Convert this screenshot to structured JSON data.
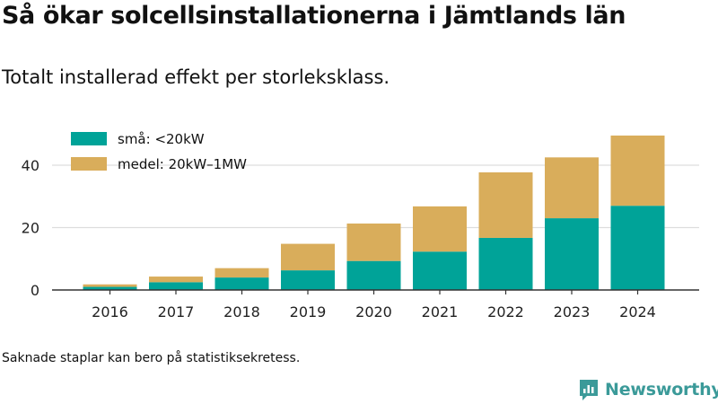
{
  "header": {
    "title": "Så ökar solcellsinstallationerna i Jämtlands län",
    "subtitle": "Totalt installerad effekt per storleksklass."
  },
  "footer": {
    "note": "Saknade staplar kan bero på statistiksekretess.",
    "brand": "Newsworthy"
  },
  "colors": {
    "small": "#00a398",
    "medium": "#d9ad5b",
    "grid": "#dddddd",
    "axis": "#333333"
  },
  "chart_data": {
    "type": "bar",
    "stacked": true,
    "categories": [
      "2016",
      "2017",
      "2018",
      "2019",
      "2020",
      "2021",
      "2022",
      "2023",
      "2024"
    ],
    "series": [
      {
        "name": "små: <20kW",
        "values": [
          1.0,
          2.5,
          4.0,
          6.3,
          9.3,
          12.3,
          16.7,
          23.0,
          27.0
        ]
      },
      {
        "name": "medel: 20kW–1MW",
        "values": [
          0.8,
          1.8,
          3.0,
          8.5,
          12.0,
          14.5,
          21.0,
          19.5,
          22.5
        ]
      }
    ],
    "yticks": [
      0,
      20,
      40
    ],
    "ylim": [
      0,
      52
    ],
    "grid": true,
    "legend": "top-left"
  }
}
